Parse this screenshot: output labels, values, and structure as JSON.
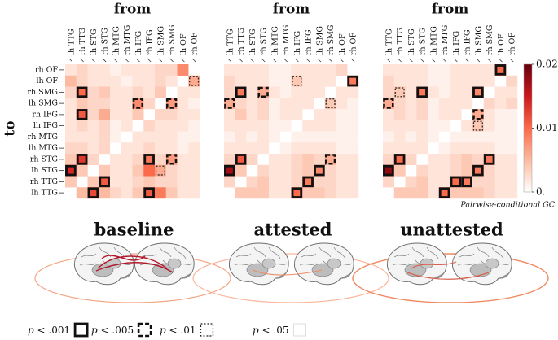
{
  "chart_data": [
    {
      "type": "heatmap",
      "title": "from",
      "ylabel": "to",
      "subtitle": "baseline",
      "rows": [
        "rh OF",
        "lh OF",
        "rh SMG",
        "lh SMG",
        "rh IFG",
        "lh IFG",
        "rh MTG",
        "lh MTG",
        "rh STG",
        "lh STG",
        "rh TTG",
        "lh TTG"
      ],
      "columns": [
        "lh TTG",
        "rh TTG",
        "lh STG",
        "rh STG",
        "lh MTG",
        "rh MTG",
        "lh IFG",
        "rh IFG",
        "lh SMG",
        "rh SMG",
        "lh OF",
        "rh OF"
      ],
      "values": [
        [
          0.002,
          0.003,
          0.002,
          0.002,
          0.001,
          0.002,
          0.002,
          0.002,
          0.003,
          0.003,
          0.008,
          null
        ],
        [
          0.005,
          0.003,
          0.002,
          0.002,
          0.002,
          0.001,
          0.002,
          0.002,
          0.003,
          0.002,
          null,
          0.006
        ],
        [
          0.003,
          0.01,
          0.003,
          0.004,
          0.002,
          0.002,
          0.003,
          0.002,
          0.004,
          null,
          0.002,
          0.002
        ],
        [
          0.002,
          0.004,
          0.003,
          0.003,
          0.002,
          0.002,
          0.008,
          0.003,
          null,
          0.007,
          0.002,
          0.001
        ],
        [
          0.002,
          0.011,
          0.003,
          0.006,
          0.002,
          0.002,
          0.004,
          null,
          0.003,
          0.003,
          0.002,
          0.002
        ],
        [
          0.002,
          0.003,
          0.002,
          0.003,
          0.001,
          0.002,
          null,
          0.003,
          0.002,
          0.002,
          0.002,
          0.001
        ],
        [
          0.002,
          0.002,
          0.002,
          0.003,
          0.001,
          null,
          0.002,
          0.002,
          0.002,
          0.002,
          0.001,
          0.001
        ],
        [
          0.003,
          0.003,
          0.002,
          0.003,
          null,
          0.002,
          0.002,
          0.003,
          0.002,
          0.002,
          0.001,
          0.002
        ],
        [
          0.004,
          0.013,
          0.003,
          null,
          0.002,
          0.002,
          0.003,
          0.009,
          0.003,
          0.007,
          0.002,
          0.002
        ],
        [
          0.014,
          0.004,
          null,
          0.004,
          0.002,
          0.002,
          0.004,
          0.01,
          0.006,
          0.003,
          0.002,
          0.002
        ],
        [
          0.004,
          null,
          0.004,
          0.011,
          0.002,
          0.002,
          0.003,
          0.004,
          0.003,
          0.003,
          0.002,
          0.002
        ],
        [
          null,
          0.005,
          0.012,
          0.005,
          0.003,
          0.002,
          0.004,
          0.011,
          0.009,
          0.004,
          0.002,
          0.002
        ]
      ],
      "markers": [
        [
          1,
          11,
          2
        ],
        [
          2,
          1,
          0
        ],
        [
          3,
          6,
          1
        ],
        [
          3,
          9,
          1
        ],
        [
          4,
          1,
          0
        ],
        [
          8,
          1,
          0
        ],
        [
          8,
          7,
          0
        ],
        [
          8,
          9,
          1
        ],
        [
          9,
          0,
          0
        ],
        [
          9,
          8,
          2
        ],
        [
          10,
          3,
          0
        ],
        [
          11,
          2,
          0
        ],
        [
          11,
          7,
          0
        ]
      ]
    },
    {
      "type": "heatmap",
      "title": "from",
      "subtitle": "attested",
      "columns": [
        "lh TTG",
        "rh TTG",
        "lh STG",
        "rh STG",
        "lh MTG",
        "rh MTG",
        "lh IFG",
        "rh IFG",
        "lh SMG",
        "rh SMG",
        "lh OF",
        "rh OF"
      ],
      "values": [
        [
          0.002,
          0.002,
          0.002,
          0.002,
          0.001,
          0.001,
          0.002,
          0.002,
          0.002,
          0.002,
          0.003,
          null
        ],
        [
          0.003,
          0.002,
          0.002,
          0.002,
          0.001,
          0.001,
          0.004,
          0.002,
          0.002,
          0.002,
          null,
          0.009
        ],
        [
          0.003,
          0.009,
          0.002,
          0.006,
          0.002,
          0.001,
          0.002,
          0.002,
          0.002,
          null,
          0.002,
          0.002
        ],
        [
          0.006,
          0.003,
          0.002,
          0.003,
          0.001,
          0.002,
          0.002,
          0.002,
          null,
          0.004,
          0.002,
          0.001
        ],
        [
          0.002,
          0.004,
          0.002,
          0.003,
          0.001,
          0.002,
          0.002,
          null,
          0.002,
          0.002,
          0.001,
          0.001
        ],
        [
          0.002,
          0.002,
          0.002,
          0.002,
          0.001,
          0.001,
          null,
          0.002,
          0.002,
          0.002,
          0.001,
          0.001
        ],
        [
          0.001,
          0.002,
          0.001,
          0.002,
          0.001,
          null,
          0.001,
          0.001,
          0.001,
          0.001,
          0.001,
          0.001
        ],
        [
          0.002,
          0.002,
          0.002,
          0.002,
          null,
          0.001,
          0.002,
          0.002,
          0.002,
          0.002,
          0.001,
          0.001
        ],
        [
          0.003,
          0.011,
          0.003,
          null,
          0.002,
          0.002,
          0.003,
          0.004,
          0.003,
          0.006,
          0.002,
          0.002
        ],
        [
          0.017,
          0.004,
          null,
          0.003,
          0.002,
          0.002,
          0.003,
          0.004,
          0.008,
          0.003,
          0.002,
          0.002
        ],
        [
          0.003,
          null,
          0.003,
          0.004,
          0.002,
          0.002,
          0.003,
          0.009,
          0.003,
          0.003,
          0.002,
          0.002
        ],
        [
          null,
          0.004,
          0.004,
          0.004,
          0.002,
          0.002,
          0.01,
          0.004,
          0.004,
          0.003,
          0.002,
          0.002
        ]
      ],
      "markers": [
        [
          1,
          6,
          2
        ],
        [
          1,
          11,
          0
        ],
        [
          2,
          1,
          0
        ],
        [
          2,
          3,
          1
        ],
        [
          3,
          0,
          1
        ],
        [
          3,
          9,
          2
        ],
        [
          8,
          1,
          0
        ],
        [
          8,
          9,
          1
        ],
        [
          9,
          0,
          0
        ],
        [
          9,
          8,
          0
        ],
        [
          10,
          7,
          0
        ],
        [
          11,
          6,
          0
        ]
      ]
    },
    {
      "type": "heatmap",
      "title": "from",
      "subtitle": "unattested",
      "columns": [
        "lh TTG",
        "rh TTG",
        "lh STG",
        "rh STG",
        "lh MTG",
        "rh MTG",
        "lh IFG",
        "rh IFG",
        "lh SMG",
        "rh SMG",
        "lh OF",
        "rh OF"
      ],
      "values": [
        [
          0.002,
          0.002,
          0.002,
          0.002,
          0.001,
          0.001,
          0.002,
          0.002,
          0.002,
          0.002,
          0.01,
          null
        ],
        [
          0.003,
          0.002,
          0.002,
          0.002,
          0.001,
          0.001,
          0.002,
          0.002,
          0.002,
          0.002,
          null,
          0.003
        ],
        [
          0.003,
          0.004,
          0.002,
          0.009,
          0.002,
          0.001,
          0.002,
          0.002,
          0.008,
          null,
          0.002,
          0.002
        ],
        [
          0.006,
          0.003,
          0.002,
          0.003,
          0.001,
          0.002,
          0.002,
          0.002,
          null,
          0.003,
          0.002,
          0.003
        ],
        [
          0.002,
          0.003,
          0.002,
          0.003,
          0.001,
          0.002,
          0.002,
          null,
          0.006,
          0.002,
          0.001,
          0.001
        ],
        [
          0.002,
          0.002,
          0.002,
          0.002,
          0.001,
          0.001,
          null,
          0.002,
          0.004,
          0.002,
          0.001,
          0.001
        ],
        [
          0.001,
          0.002,
          0.001,
          0.002,
          0.001,
          null,
          0.001,
          0.001,
          0.001,
          0.001,
          0.001,
          0.001
        ],
        [
          0.002,
          0.002,
          0.002,
          0.002,
          null,
          0.001,
          0.002,
          0.002,
          0.002,
          0.002,
          0.001,
          0.001
        ],
        [
          0.003,
          0.01,
          0.003,
          null,
          0.002,
          0.002,
          0.003,
          0.004,
          0.003,
          0.009,
          0.002,
          0.002
        ],
        [
          0.018,
          0.004,
          null,
          0.003,
          0.002,
          0.002,
          0.003,
          0.004,
          0.009,
          0.003,
          0.002,
          0.002
        ],
        [
          0.003,
          null,
          0.003,
          0.004,
          0.002,
          0.002,
          0.01,
          0.009,
          0.003,
          0.003,
          0.002,
          0.002
        ],
        [
          null,
          0.004,
          0.004,
          0.004,
          0.002,
          0.01,
          0.004,
          0.004,
          0.004,
          0.003,
          0.002,
          0.002
        ]
      ],
      "markers": [
        [
          0,
          10,
          0
        ],
        [
          2,
          1,
          2
        ],
        [
          2,
          3,
          0
        ],
        [
          2,
          8,
          0
        ],
        [
          3,
          0,
          1
        ],
        [
          4,
          8,
          1
        ],
        [
          5,
          8,
          2
        ],
        [
          8,
          1,
          0
        ],
        [
          8,
          9,
          0
        ],
        [
          9,
          0,
          0
        ],
        [
          9,
          8,
          0
        ],
        [
          10,
          6,
          0
        ],
        [
          10,
          7,
          0
        ],
        [
          11,
          5,
          0
        ]
      ]
    }
  ],
  "colorbar": {
    "label": "Pairwise-conditional GC",
    "lim": [
      0,
      0.02
    ],
    "ticks": [
      0.02,
      0.01,
      {
        "value": 0,
        "label": "0."
      }
    ],
    "colors": [
      "#ffffff",
      "#fcbba1",
      "#fb6a4a",
      "#cb181d",
      "#67000d"
    ]
  },
  "legend": [
    {
      "var": "p",
      "label": "< .001"
    },
    {
      "var": "p",
      "label": "< .005"
    },
    {
      "var": "p",
      "label": "< .01"
    },
    {
      "var": "p",
      "label": "< .05"
    }
  ]
}
